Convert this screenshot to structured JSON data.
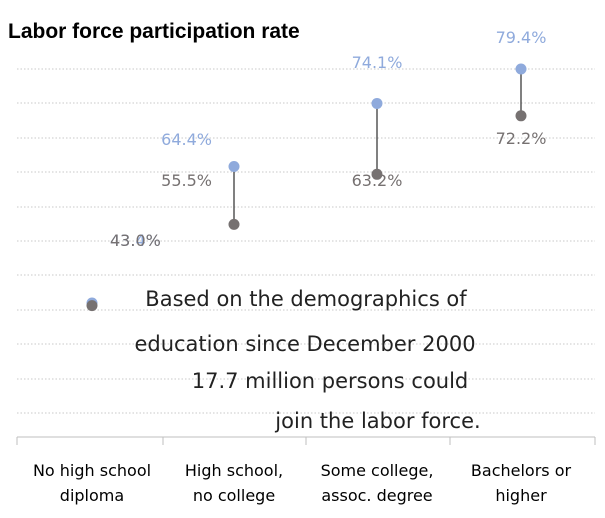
{
  "chart_data": {
    "type": "dot",
    "title": "Labor force participation rate",
    "categories": [
      [
        "No high school",
        "diploma"
      ],
      [
        "High school,",
        "no college"
      ],
      [
        "Some college,",
        "assoc. degree"
      ],
      [
        "Bachelors or",
        "higher"
      ]
    ],
    "series": [
      {
        "values": [
          43.4,
          64.4,
          74.1,
          79.4
        ],
        "labels": [
          "43.4%",
          "64.4%",
          "74.1%",
          "79.4%"
        ],
        "color": "#8FAADC"
      },
      {
        "values": [
          43.0,
          55.5,
          63.2,
          72.2
        ],
        "labels": [
          "43.0%",
          "55.5%",
          "63.2%",
          "72.2%"
        ],
        "color": "#767171"
      }
    ],
    "connector_color": "#555555",
    "grid": true,
    "annotation_lines": [
      "Based on the demographics of",
      "education since December 2000",
      "17.7 million persons could",
      "join the labor force."
    ]
  }
}
